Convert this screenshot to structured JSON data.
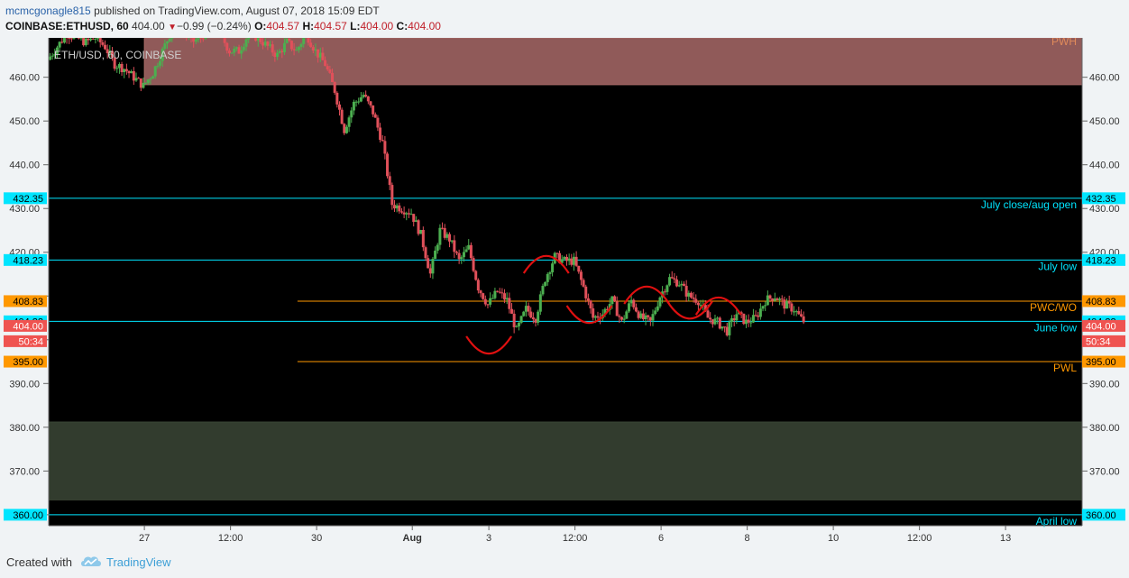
{
  "header": {
    "author": "mcmcgonagle815",
    "published_text": " published on TradingView.com, August 07, 2018 15:09 EDT",
    "symbol": "COINBASE:ETHUSD, 60",
    "last_price": "404.00",
    "change": "−0.99 (−0.24%)",
    "o_label": "O:",
    "o_value": "404.57",
    "h_label": "H:",
    "h_value": "404.57",
    "l_label": "L:",
    "l_value": "404.00",
    "c_label": "C:",
    "c_value": "404.00"
  },
  "chart_data": {
    "type": "candlestick",
    "chart_title": "ETH/USD, 60, COINBASE",
    "y_range": [
      357.5,
      469
    ],
    "y_ticks": [
      360,
      370,
      380,
      390,
      400,
      410,
      420,
      430,
      440,
      450,
      460
    ],
    "y_tick_labels_left": [
      "360.00",
      "370.00",
      "380.00",
      "390.00",
      "",
      "",
      "420.00",
      "430.00",
      "440.00",
      "450.00",
      "460.00"
    ],
    "y_tick_labels_right": [
      "",
      "370.00",
      "380.00",
      "390.00",
      "",
      "",
      "420.00",
      "430.00",
      "440.00",
      "450.00",
      "460.00"
    ],
    "x_range": [
      0,
      216
    ],
    "x_ticks": [
      {
        "label": "27",
        "t": 20
      },
      {
        "label": "12:00",
        "t": 38
      },
      {
        "label": "30",
        "t": 56
      },
      {
        "label": "Aug",
        "t": 76,
        "bold": true
      },
      {
        "label": "3",
        "t": 92
      },
      {
        "label": "12:00",
        "t": 110
      },
      {
        "label": "6",
        "t": 128
      },
      {
        "label": "8",
        "t": 146
      },
      {
        "label": "10",
        "t": 164
      },
      {
        "label": "12:00",
        "t": 182
      },
      {
        "label": "13",
        "t": 200
      }
    ],
    "key_levels": [
      {
        "label": "July close/aug open",
        "price": 432.35,
        "value_tag": "432.35",
        "color": "#00e5ff"
      },
      {
        "label": "July low",
        "price": 418.23,
        "value_tag": "418.23",
        "color": "#00e5ff"
      },
      {
        "label": "PWC/WO",
        "price": 408.83,
        "value_tag": "408.83",
        "color": "#ff9800",
        "t_start": 52
      },
      {
        "label": "June low",
        "price": 404.22,
        "value_tag": "404.22",
        "color": "#00e5ff"
      },
      {
        "label": "PWL",
        "price": 395.0,
        "value_tag": "395.00",
        "color": "#ff9800",
        "t_start": 52
      },
      {
        "label": "April low",
        "price": 360.0,
        "value_tag": "360.00",
        "color": "#00e5ff"
      }
    ],
    "zones": [
      {
        "label": "PWH",
        "price_top": 469,
        "price_bottom": 458.3,
        "t_start": 20,
        "color": "#a96a68"
      },
      {
        "label": "",
        "price_top": 381.2,
        "price_bottom": 363.4,
        "t_start": 0,
        "color": "#3b4636"
      }
    ],
    "current_price": {
      "value": "404.00",
      "countdown": "50:34",
      "color": "#ef5350"
    },
    "candle_close_anchors": [
      [
        0,
        464
      ],
      [
        2,
        467
      ],
      [
        4,
        470
      ],
      [
        6,
        469
      ],
      [
        8,
        468
      ],
      [
        10,
        469
      ],
      [
        12,
        467
      ],
      [
        14,
        463
      ],
      [
        16,
        462
      ],
      [
        18,
        460
      ],
      [
        20,
        458
      ],
      [
        22,
        461
      ],
      [
        24,
        466
      ],
      [
        26,
        471
      ],
      [
        28,
        471
      ],
      [
        30,
        468
      ],
      [
        32,
        469
      ],
      [
        34,
        472
      ],
      [
        36,
        470
      ],
      [
        38,
        466
      ],
      [
        40,
        466
      ],
      [
        42,
        470
      ],
      [
        44,
        469
      ],
      [
        46,
        467
      ],
      [
        48,
        465
      ],
      [
        50,
        468
      ],
      [
        52,
        466
      ],
      [
        54,
        470
      ],
      [
        56,
        466
      ],
      [
        58,
        463
      ],
      [
        60,
        457
      ],
      [
        62,
        448
      ],
      [
        64,
        454
      ],
      [
        66,
        456
      ],
      [
        68,
        452
      ],
      [
        70,
        445
      ],
      [
        72,
        431
      ],
      [
        74,
        430
      ],
      [
        76,
        429
      ],
      [
        78,
        424
      ],
      [
        80,
        415
      ],
      [
        82,
        425
      ],
      [
        84,
        423
      ],
      [
        86,
        418
      ],
      [
        88,
        421
      ],
      [
        90,
        412
      ],
      [
        92,
        408
      ],
      [
        94,
        411
      ],
      [
        96,
        409
      ],
      [
        98,
        402
      ],
      [
        100,
        407
      ],
      [
        102,
        405
      ],
      [
        104,
        414
      ],
      [
        106,
        419
      ],
      [
        108,
        418
      ],
      [
        110,
        418
      ],
      [
        112,
        412
      ],
      [
        114,
        405
      ],
      [
        116,
        406
      ],
      [
        118,
        409
      ],
      [
        120,
        404
      ],
      [
        122,
        409
      ],
      [
        124,
        405
      ],
      [
        126,
        404
      ],
      [
        128,
        410
      ],
      [
        130,
        414
      ],
      [
        132,
        413
      ],
      [
        134,
        410
      ],
      [
        136,
        409
      ],
      [
        138,
        405
      ],
      [
        140,
        404
      ],
      [
        142,
        402
      ],
      [
        144,
        406
      ],
      [
        146,
        404
      ],
      [
        148,
        405
      ],
      [
        150,
        409
      ],
      [
        152,
        410
      ],
      [
        154,
        408
      ],
      [
        156,
        407
      ],
      [
        158,
        404
      ]
    ],
    "annotations": [
      {
        "shape": "arc-up",
        "t": 92,
        "price": 397.5
      },
      {
        "shape": "arc-down",
        "t": 104,
        "price": 418.5
      },
      {
        "shape": "arc-up",
        "t": 113,
        "price": 404.5
      },
      {
        "shape": "arc-down",
        "t": 125,
        "price": 411.5
      },
      {
        "shape": "arc-up",
        "t": 134,
        "price": 405.5
      },
      {
        "shape": "arc-down",
        "t": 140,
        "price": 409
      }
    ]
  },
  "footer": {
    "created_with": "Created with",
    "brand": "TradingView"
  }
}
